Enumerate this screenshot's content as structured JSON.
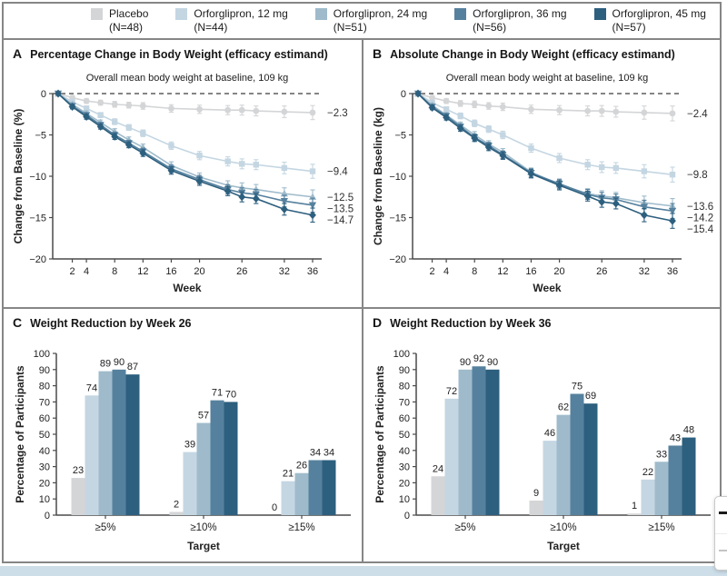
{
  "legend": {
    "items": [
      {
        "label": "Placebo",
        "n": "(N=48)",
        "color": "#d4d5d7"
      },
      {
        "label": "Orforglipron, 12 mg",
        "n": "(N=44)",
        "color": "#c4d6e2"
      },
      {
        "label": "Orforglipron, 24 mg",
        "n": "(N=51)",
        "color": "#9fbbcb"
      },
      {
        "label": "Orforglipron, 36 mg",
        "n": "(N=56)",
        "color": "#56819e"
      },
      {
        "label": "Orforglipron, 45 mg",
        "n": "(N=57)",
        "color": "#2d5f7e"
      }
    ]
  },
  "chart_data": [
    {
      "letter": "A",
      "type": "line",
      "title": "Percentage Change in Body Weight (efficacy estimand)",
      "annotation": "Overall mean body weight at baseline, 109 kg",
      "xlabel": "Week",
      "ylabel": "Change from Baseline (%)",
      "ylim": [
        -20,
        0
      ],
      "yticks": [
        0,
        -5,
        -10,
        -15,
        -20
      ],
      "xticks": [
        2,
        4,
        8,
        12,
        16,
        20,
        26,
        32,
        36
      ],
      "x": [
        0,
        2,
        4,
        6,
        8,
        10,
        12,
        16,
        20,
        24,
        26,
        28,
        32,
        36
      ],
      "errors": [
        0,
        0.25,
        0.3,
        0.3,
        0.35,
        0.35,
        0.4,
        0.45,
        0.5,
        0.55,
        0.6,
        0.6,
        0.7,
        0.85
      ],
      "markers": [
        "circle",
        "square",
        "triangle-up",
        "triangle-down",
        "diamond"
      ],
      "series": [
        {
          "name": "Placebo",
          "end_label": "−2.3",
          "values": [
            0,
            -0.5,
            -0.9,
            -1.1,
            -1.3,
            -1.4,
            -1.5,
            -1.8,
            -1.9,
            -2.0,
            -2.0,
            -2.1,
            -2.2,
            -2.3
          ]
        },
        {
          "name": "Orforglipron, 12 mg",
          "end_label": "−9.4",
          "values": [
            0,
            -1.0,
            -1.8,
            -2.6,
            -3.4,
            -4.1,
            -4.8,
            -6.3,
            -7.5,
            -8.2,
            -8.5,
            -8.6,
            -9.0,
            -9.4
          ]
        },
        {
          "name": "Orforglipron, 24 mg",
          "end_label": "−12.5",
          "values": [
            0,
            -1.3,
            -2.4,
            -3.5,
            -4.6,
            -5.6,
            -6.5,
            -8.7,
            -10.1,
            -11.1,
            -11.4,
            -11.6,
            -12.1,
            -12.5
          ]
        },
        {
          "name": "Orforglipron, 36 mg",
          "end_label": "−13.5",
          "values": [
            0,
            -1.5,
            -2.6,
            -3.8,
            -5.0,
            -6.0,
            -7.0,
            -9.1,
            -10.4,
            -11.6,
            -12.0,
            -12.2,
            -13.0,
            -13.5
          ]
        },
        {
          "name": "Orforglipron, 45 mg",
          "end_label": "−14.7",
          "values": [
            0,
            -1.6,
            -2.8,
            -4.0,
            -5.2,
            -6.2,
            -7.2,
            -9.3,
            -10.6,
            -11.8,
            -12.5,
            -12.7,
            -14.0,
            -14.7
          ]
        }
      ]
    },
    {
      "letter": "B",
      "type": "line",
      "title": "Absolute Change in Body Weight (efficacy estimand)",
      "annotation": "Overall mean body weight at baseline, 109 kg",
      "xlabel": "Week",
      "ylabel": "Change from Baseline (kg)",
      "ylim": [
        -20,
        0
      ],
      "yticks": [
        0,
        -5,
        -10,
        -15,
        -20
      ],
      "xticks": [
        2,
        4,
        8,
        12,
        16,
        20,
        26,
        32,
        36
      ],
      "x": [
        0,
        2,
        4,
        6,
        8,
        10,
        12,
        16,
        20,
        24,
        26,
        28,
        32,
        36
      ],
      "errors": [
        0,
        0.25,
        0.3,
        0.35,
        0.4,
        0.4,
        0.45,
        0.5,
        0.55,
        0.6,
        0.65,
        0.65,
        0.8,
        0.9
      ],
      "markers": [
        "circle",
        "square",
        "triangle-up",
        "triangle-down",
        "diamond"
      ],
      "series": [
        {
          "name": "Placebo",
          "end_label": "−2.4",
          "values": [
            0,
            -0.5,
            -0.9,
            -1.2,
            -1.3,
            -1.5,
            -1.6,
            -1.9,
            -2.0,
            -2.1,
            -2.1,
            -2.2,
            -2.3,
            -2.4
          ]
        },
        {
          "name": "Orforglipron, 12 mg",
          "end_label": "−9.8",
          "values": [
            0,
            -1.1,
            -1.9,
            -2.7,
            -3.6,
            -4.3,
            -5.0,
            -6.6,
            -7.8,
            -8.6,
            -8.9,
            -9.0,
            -9.4,
            -9.8
          ]
        },
        {
          "name": "Orforglipron, 24 mg",
          "end_label": "−13.6",
          "values": [
            0,
            -1.4,
            -2.6,
            -3.8,
            -5.0,
            -6.1,
            -7.1,
            -9.5,
            -11.0,
            -12.1,
            -12.4,
            -12.6,
            -13.2,
            -13.6
          ]
        },
        {
          "name": "Orforglipron, 36 mg",
          "end_label": "−14.2",
          "values": [
            0,
            -1.6,
            -2.7,
            -4.0,
            -5.3,
            -6.3,
            -7.4,
            -9.6,
            -10.9,
            -12.2,
            -12.6,
            -12.8,
            -13.7,
            -14.2
          ]
        },
        {
          "name": "Orforglipron, 45 mg",
          "end_label": "−15.4",
          "values": [
            0,
            -1.7,
            -2.9,
            -4.2,
            -5.4,
            -6.5,
            -7.5,
            -9.7,
            -11.1,
            -12.4,
            -13.1,
            -13.3,
            -14.7,
            -15.4
          ]
        }
      ]
    },
    {
      "letter": "C",
      "type": "bar",
      "title": "Weight Reduction by Week 26",
      "xlabel": "Target",
      "ylabel": "Percentage of Participants",
      "ylim": [
        0,
        100
      ],
      "yticks": [
        0,
        10,
        20,
        30,
        40,
        50,
        60,
        70,
        80,
        90,
        100
      ],
      "categories": [
        "≥5%",
        "≥10%",
        "≥15%"
      ],
      "series": [
        {
          "name": "Placebo",
          "values": [
            23,
            2,
            0
          ]
        },
        {
          "name": "Orforglipron, 12 mg",
          "values": [
            74,
            39,
            21
          ]
        },
        {
          "name": "Orforglipron, 24 mg",
          "values": [
            89,
            57,
            26
          ]
        },
        {
          "name": "Orforglipron, 36 mg",
          "values": [
            90,
            71,
            34
          ]
        },
        {
          "name": "Orforglipron, 45 mg",
          "values": [
            87,
            70,
            34
          ]
        }
      ]
    },
    {
      "letter": "D",
      "type": "bar",
      "title": "Weight Reduction by Week 36",
      "xlabel": "Target",
      "ylabel": "Percentage of Participants",
      "ylim": [
        0,
        100
      ],
      "yticks": [
        0,
        10,
        20,
        30,
        40,
        50,
        60,
        70,
        80,
        90,
        100
      ],
      "categories": [
        "≥5%",
        "≥10%",
        "≥15%"
      ],
      "series": [
        {
          "name": "Placebo",
          "values": [
            24,
            9,
            1
          ]
        },
        {
          "name": "Orforglipron, 12 mg",
          "values": [
            72,
            46,
            22
          ]
        },
        {
          "name": "Orforglipron, 24 mg",
          "values": [
            90,
            62,
            33
          ]
        },
        {
          "name": "Orforglipron, 36 mg",
          "values": [
            92,
            75,
            43
          ]
        },
        {
          "name": "Orforglipron, 45 mg",
          "values": [
            90,
            69,
            48
          ]
        }
      ]
    }
  ],
  "edge_widget": {
    "icons": [
      "minus-icon",
      "minus-icon"
    ]
  },
  "page": {
    "bottom_strip_color": "#cddee9"
  }
}
